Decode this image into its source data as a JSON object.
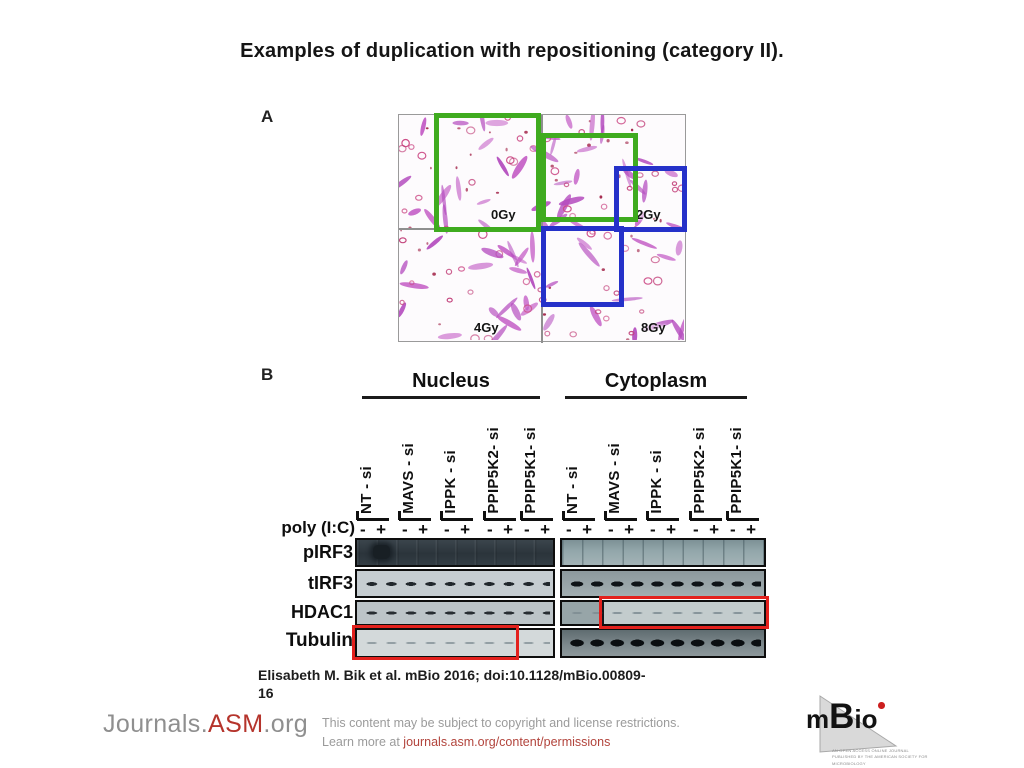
{
  "title": "Examples of duplication with repositioning (category II).",
  "panelA": {
    "label": "A",
    "quadrants": [
      "0Gy",
      "2Gy",
      "4Gy",
      "8Gy"
    ],
    "highlight_colors": {
      "green": "#3fab1f",
      "blue": "#2531c9"
    }
  },
  "panelB": {
    "label": "B",
    "group_headers": [
      "Nucleus",
      "Cytoplasm"
    ],
    "condition_label": "poly (I:C)",
    "tick_minus": "-",
    "tick_plus": "+",
    "lanes": [
      "NT - si",
      "MAVS - si",
      "IPPK - si",
      "PPIP5K2- si",
      "PPIP5K1- si"
    ],
    "rows": [
      "pIRF3",
      "tIRF3",
      "HDAC1",
      "Tubulin"
    ],
    "highlight_color": "#e3211d"
  },
  "citation": {
    "line1": "Elisabeth M. Bik et al. mBio 2016; doi:10.1128/mBio.00809-",
    "line2": "16"
  },
  "footer": {
    "brand": {
      "part1": "Journals.",
      "part2": "ASM",
      "part3": ".org",
      "accent": "#b5342c"
    },
    "disclaimer_line1": "This content may be subject to copyright and license restrictions.",
    "learn_more_prefix": "Learn more at ",
    "permissions_link": "journals.asm.org/content/permissions",
    "mbio": {
      "m": "m",
      "B": "B",
      "io": "io",
      "caption": "AN OPEN ACCESS ONLINE JOURNAL PUBLISHED BY THE AMERICAN SOCIETY FOR MICROBIOLOGY"
    }
  }
}
